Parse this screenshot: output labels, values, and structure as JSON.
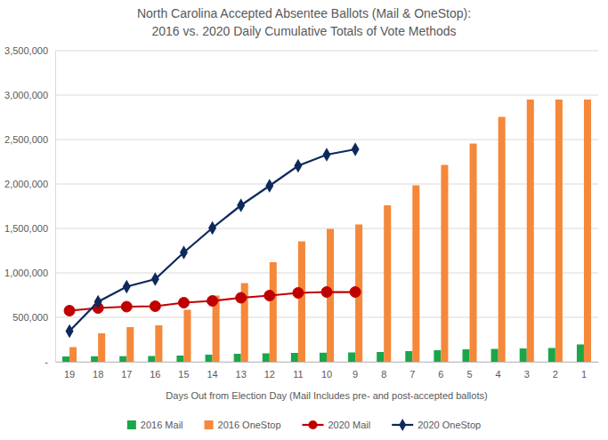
{
  "chart_data": {
    "type": "bar",
    "title": [
      "North Carolina Accepted Absentee Ballots (Mail & OneStop):",
      "2016 vs. 2020 Daily Cumulative Totals of Vote Methods"
    ],
    "x_label": "Days Out from Election Day (Mail Includes pre- and post-accepted ballots)",
    "categories": [
      "19",
      "18",
      "17",
      "16",
      "15",
      "14",
      "13",
      "12",
      "11",
      "10",
      "9",
      "8",
      "7",
      "6",
      "5",
      "4",
      "3",
      "2",
      "1"
    ],
    "series": [
      {
        "name": "2016 Mail",
        "type": "bar",
        "color": "#1ba64a",
        "values": [
          60000,
          62000,
          63000,
          65000,
          70000,
          80000,
          90000,
          95000,
          100000,
          102000,
          105000,
          110000,
          120000,
          130000,
          140000,
          145000,
          150000,
          155000,
          195000
        ]
      },
      {
        "name": "2016 OneStop",
        "type": "bar",
        "color": "#f5883a",
        "values": [
          165000,
          320000,
          390000,
          410000,
          585000,
          745000,
          885000,
          1120000,
          1355000,
          1495000,
          1545000,
          1760000,
          1985000,
          2215000,
          2455000,
          2755000,
          2950000,
          2950000,
          2950000
        ]
      },
      {
        "name": "2020 Mail",
        "type": "line",
        "color": "#c00000",
        "marker": "circle",
        "line_style": "solid",
        "values": [
          575000,
          605000,
          620000,
          625000,
          665000,
          685000,
          720000,
          745000,
          775000,
          785000,
          785000,
          null,
          null,
          null,
          null,
          null,
          null,
          null,
          null
        ]
      },
      {
        "name": "2020 OneStop",
        "type": "line",
        "color": "#0e2a5c",
        "marker": "diamond",
        "line_style": "solid",
        "values": [
          345000,
          675000,
          845000,
          930000,
          1230000,
          1505000,
          1760000,
          1980000,
          2205000,
          2330000,
          2390000,
          null,
          null,
          null,
          null,
          null,
          null,
          null,
          null
        ]
      }
    ],
    "ylim": [
      0,
      3500000
    ],
    "yticks": [
      {
        "value": 0,
        "label": "-"
      },
      {
        "value": 500000,
        "label": "500,000"
      },
      {
        "value": 1000000,
        "label": "1,000,000"
      },
      {
        "value": 1500000,
        "label": "1,500,000"
      },
      {
        "value": 2000000,
        "label": "2,000,000"
      },
      {
        "value": 2500000,
        "label": "2,500,000"
      },
      {
        "value": 3000000,
        "label": "3,000,000"
      },
      {
        "value": 3500000,
        "label": "3,500,000"
      }
    ],
    "grid": true,
    "legend": "bottom"
  }
}
